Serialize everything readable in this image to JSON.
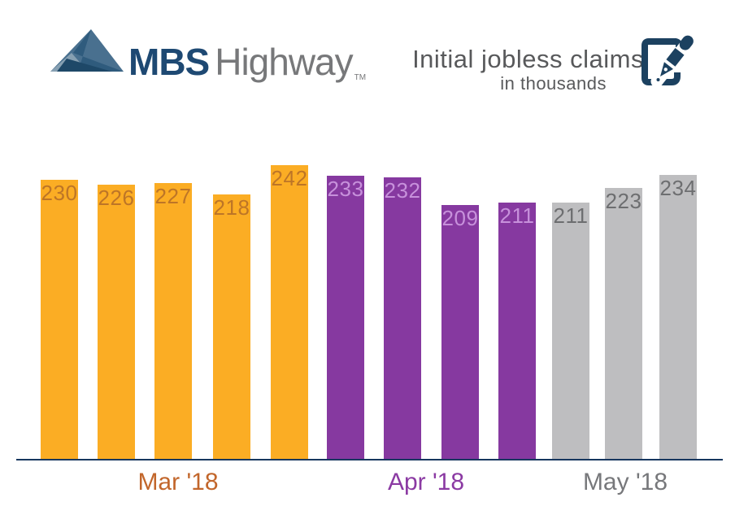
{
  "header": {
    "logo": {
      "brand_bold": "MBS",
      "brand_light": "Highway",
      "trademark": "TM"
    },
    "title": "Initial jobless claims",
    "subtitle": "in thousands"
  },
  "chart_data": {
    "type": "bar",
    "title": "Initial jobless claims",
    "subtitle": "in thousands",
    "unit": "thousands of claims",
    "categories": [
      "Mar '18",
      "Mar '18",
      "Mar '18",
      "Mar '18",
      "Mar '18",
      "Apr '18",
      "Apr '18",
      "Apr '18",
      "Apr '18",
      "May '18",
      "May '18",
      "May '18"
    ],
    "series": [
      {
        "name": "Initial jobless claims",
        "values": [
          230,
          226,
          227,
          218,
          242,
          233,
          232,
          209,
          211,
          211,
          223,
          234
        ]
      }
    ],
    "groups": [
      {
        "label": "Mar '18",
        "bar_color": "#FBAD24",
        "value_label_color": "#BD7527",
        "month_label_color": "#C2662B",
        "values": [
          230,
          226,
          227,
          218,
          242
        ]
      },
      {
        "label": "Apr '18",
        "bar_color": "#8639A0",
        "value_label_color": "#C791DB",
        "month_label_color": "#8B3AA3",
        "values": [
          233,
          232,
          209,
          211
        ]
      },
      {
        "label": "May '18",
        "bar_color": "#BEBEC0",
        "value_label_color": "#6D6E70",
        "month_label_color": "#77787B",
        "values": [
          211,
          223,
          234
        ]
      }
    ],
    "ylim": [
      0,
      242
    ],
    "grid": false,
    "legend": false,
    "value_labels_shown": true,
    "axis_line_color": "#17375F"
  },
  "colors": {
    "brand_navy": "#1E4973",
    "brand_gray": "#77787A",
    "title_gray": "#58595B",
    "icon_navy": "#1C4160",
    "axis_line": "#17375F",
    "background": "#FFFFFF"
  }
}
